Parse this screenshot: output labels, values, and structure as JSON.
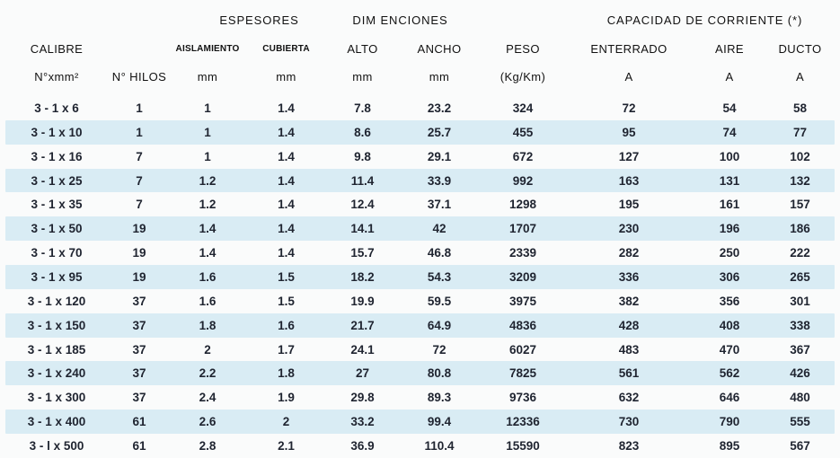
{
  "table": {
    "group_headers": {
      "espesores": "ESPESORES",
      "dimenciones": "DIM ENCIONES",
      "capacidad": "CAPACIDAD DE CORRIENTE (*)"
    },
    "columns": [
      {
        "id": "calibre",
        "label": "CALIBRE",
        "unit": "N°xmm²"
      },
      {
        "id": "hilos",
        "label": "",
        "unit": "N° HILOS"
      },
      {
        "id": "aislamiento",
        "label": "AISLAMIENTO",
        "unit": "mm"
      },
      {
        "id": "cubierta",
        "label": "CUBIERTA",
        "unit": "mm"
      },
      {
        "id": "alto",
        "label": "ALTO",
        "unit": "mm"
      },
      {
        "id": "ancho",
        "label": "ANCHO",
        "unit": "mm"
      },
      {
        "id": "peso",
        "label": "PESO",
        "unit": "(Kg/Km)"
      },
      {
        "id": "enterrado",
        "label": "ENTERRADO",
        "unit": "A"
      },
      {
        "id": "aire",
        "label": "AIRE",
        "unit": "A"
      },
      {
        "id": "ducto",
        "label": "DUCTO",
        "unit": "A"
      }
    ],
    "rows": [
      [
        "3 - 1 x 6",
        "1",
        "1",
        "1.4",
        "7.8",
        "23.2",
        "324",
        "72",
        "54",
        "58"
      ],
      [
        "3 - 1 x 10",
        "1",
        "1",
        "1.4",
        "8.6",
        "25.7",
        "455",
        "95",
        "74",
        "77"
      ],
      [
        "3 - 1 x 16",
        "7",
        "1",
        "1.4",
        "9.8",
        "29.1",
        "672",
        "127",
        "100",
        "102"
      ],
      [
        "3 - 1 x 25",
        "7",
        "1.2",
        "1.4",
        "11.4",
        "33.9",
        "992",
        "163",
        "131",
        "132"
      ],
      [
        "3 - 1 x 35",
        "7",
        "1.2",
        "1.4",
        "12.4",
        "37.1",
        "1298",
        "195",
        "161",
        "157"
      ],
      [
        "3 - 1 x 50",
        "19",
        "1.4",
        "1.4",
        "14.1",
        "42",
        "1707",
        "230",
        "196",
        "186"
      ],
      [
        "3 - 1 x 70",
        "19",
        "1.4",
        "1.4",
        "15.7",
        "46.8",
        "2339",
        "282",
        "250",
        "222"
      ],
      [
        "3 - 1 x 95",
        "19",
        "1.6",
        "1.5",
        "18.2",
        "54.3",
        "3209",
        "336",
        "306",
        "265"
      ],
      [
        "3 - 1 x 120",
        "37",
        "1.6",
        "1.5",
        "19.9",
        "59.5",
        "3975",
        "382",
        "356",
        "301"
      ],
      [
        "3 - 1 x 150",
        "37",
        "1.8",
        "1.6",
        "21.7",
        "64.9",
        "4836",
        "428",
        "408",
        "338"
      ],
      [
        "3 - 1 x 185",
        "37",
        "2",
        "1.7",
        "24.1",
        "72",
        "6027",
        "483",
        "470",
        "367"
      ],
      [
        "3 - 1 x 240",
        "37",
        "2.2",
        "1.8",
        "27",
        "80.8",
        "7825",
        "561",
        "562",
        "426"
      ],
      [
        "3 - 1 x 300",
        "37",
        "2.4",
        "1.9",
        "29.8",
        "89.3",
        "9736",
        "632",
        "646",
        "480"
      ],
      [
        "3 - 1 x 400",
        "61",
        "2.6",
        "2",
        "33.2",
        "99.4",
        "12336",
        "730",
        "790",
        "555"
      ],
      [
        "3 - l x 500",
        "61",
        "2.8",
        "2.1",
        "36.9",
        "110.4",
        "15590",
        "823",
        "895",
        "567"
      ]
    ]
  },
  "colors": {
    "stripe": "#d9ecf4",
    "background": "#fafbfb",
    "text": "#1c1c1c"
  }
}
